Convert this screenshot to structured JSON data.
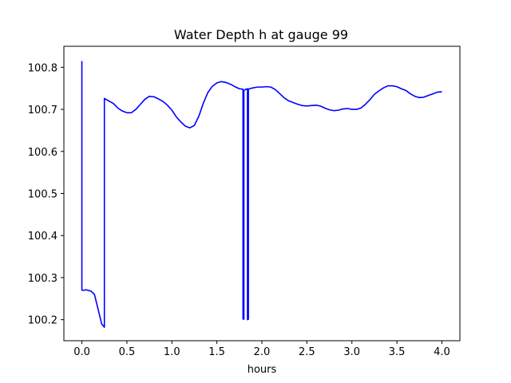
{
  "chart_data": {
    "type": "line",
    "title": "Water Depth h at gauge 99",
    "xlabel": "hours",
    "ylabel": "",
    "xlim": [
      -0.2,
      4.2
    ],
    "ylim": [
      100.15,
      100.85
    ],
    "xticks": [
      0.0,
      0.5,
      1.0,
      1.5,
      2.0,
      2.5,
      3.0,
      3.5,
      4.0
    ],
    "xtick_labels": [
      "0.0",
      "0.5",
      "1.0",
      "1.5",
      "2.0",
      "2.5",
      "3.0",
      "3.5",
      "4.0"
    ],
    "yticks": [
      100.2,
      100.3,
      100.4,
      100.5,
      100.6,
      100.7,
      100.8
    ],
    "ytick_labels": [
      "100.2",
      "100.3",
      "100.4",
      "100.5",
      "100.6",
      "100.7",
      "100.8"
    ],
    "grid": false,
    "series": [
      {
        "color": "#0000ff",
        "x": [
          0.0,
          0.0,
          0.02,
          0.05,
          0.1,
          0.14,
          0.18,
          0.22,
          0.25,
          0.25,
          0.3,
          0.35,
          0.4,
          0.45,
          0.5,
          0.55,
          0.6,
          0.65,
          0.7,
          0.75,
          0.8,
          0.85,
          0.9,
          0.95,
          1.0,
          1.05,
          1.1,
          1.15,
          1.2,
          1.25,
          1.3,
          1.35,
          1.4,
          1.45,
          1.5,
          1.55,
          1.6,
          1.65,
          1.7,
          1.75,
          1.79,
          1.79,
          1.8,
          1.8,
          1.81,
          1.82,
          1.83,
          1.84,
          1.84,
          1.85,
          1.85,
          1.86,
          1.9,
          1.95,
          2.0,
          2.05,
          2.1,
          2.15,
          2.2,
          2.25,
          2.3,
          2.35,
          2.4,
          2.45,
          2.5,
          2.55,
          2.6,
          2.65,
          2.7,
          2.75,
          2.8,
          2.85,
          2.9,
          2.95,
          3.0,
          3.05,
          3.1,
          3.15,
          3.2,
          3.25,
          3.3,
          3.35,
          3.4,
          3.45,
          3.5,
          3.55,
          3.6,
          3.65,
          3.7,
          3.75,
          3.8,
          3.85,
          3.9,
          3.95,
          4.0
        ],
        "y": [
          100.815,
          100.27,
          100.27,
          100.271,
          100.268,
          100.26,
          100.225,
          100.19,
          100.182,
          100.726,
          100.72,
          100.714,
          100.703,
          100.696,
          100.692,
          100.692,
          100.7,
          100.712,
          100.724,
          100.731,
          100.73,
          100.725,
          100.719,
          100.71,
          100.698,
          100.682,
          100.67,
          100.66,
          100.656,
          100.662,
          100.684,
          100.715,
          100.74,
          100.755,
          100.763,
          100.766,
          100.764,
          100.76,
          100.754,
          100.749,
          100.748,
          100.202,
          100.201,
          100.745,
          100.746,
          100.748,
          100.748,
          100.749,
          100.2,
          100.201,
          100.748,
          100.749,
          100.751,
          100.753,
          100.753,
          100.754,
          100.753,
          100.747,
          100.737,
          100.727,
          100.72,
          100.716,
          100.712,
          100.709,
          100.708,
          100.709,
          100.71,
          100.708,
          100.703,
          100.699,
          100.697,
          100.698,
          100.701,
          100.702,
          100.7,
          100.7,
          100.703,
          100.712,
          100.723,
          100.736,
          100.744,
          100.751,
          100.756,
          100.756,
          100.754,
          100.749,
          100.745,
          100.737,
          100.731,
          100.728,
          100.729,
          100.733,
          100.737,
          100.741,
          100.742
        ]
      }
    ]
  }
}
